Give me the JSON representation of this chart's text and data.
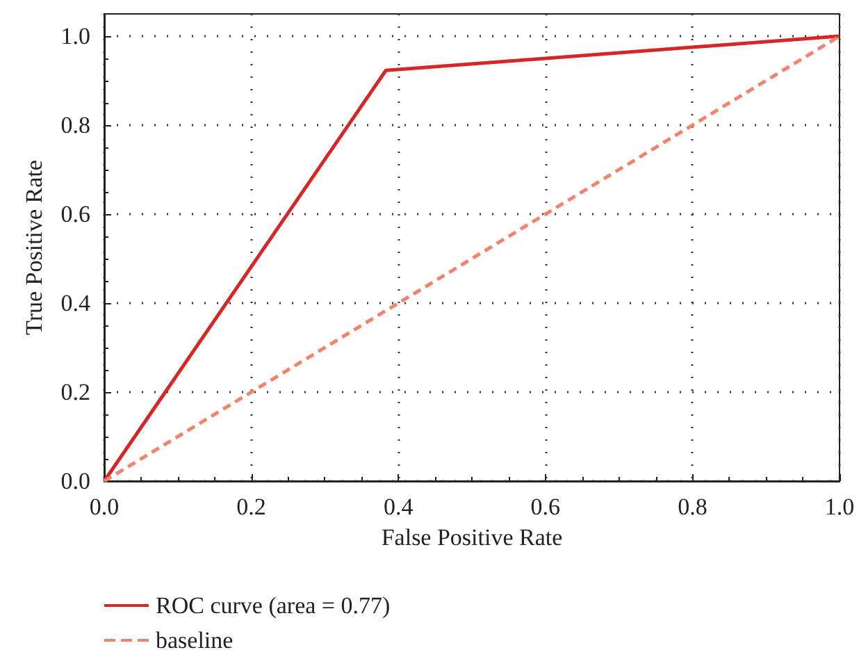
{
  "chart_data": {
    "type": "line",
    "xlabel": "False Positive Rate",
    "ylabel": "True Positive Rate",
    "x": [
      0,
      0.383,
      1
    ],
    "series": [
      {
        "name": "ROC curve (area = 0.77)",
        "color": "#d62728",
        "values": [
          0,
          0.923,
          1
        ],
        "line_style": "solid"
      },
      {
        "name": "baseline",
        "color": "#f4836b",
        "x": [
          0,
          1
        ],
        "values": [
          0,
          1
        ],
        "line_style": "dashed"
      }
    ],
    "xlim": [
      0,
      1
    ],
    "ylim": [
      0,
      1.05
    ],
    "xticks": [
      {
        "value": 0,
        "label": "0.0"
      },
      0.2,
      0.4,
      0.6,
      0.8,
      {
        "value": 1,
        "label": "1.0"
      }
    ],
    "yticks": [
      {
        "value": 0,
        "label": "0.0"
      },
      0.2,
      0.4,
      0.6,
      0.8,
      {
        "value": 1,
        "label": "1.0"
      }
    ],
    "grid": true,
    "legend": "bottom left",
    "marker": "none"
  }
}
